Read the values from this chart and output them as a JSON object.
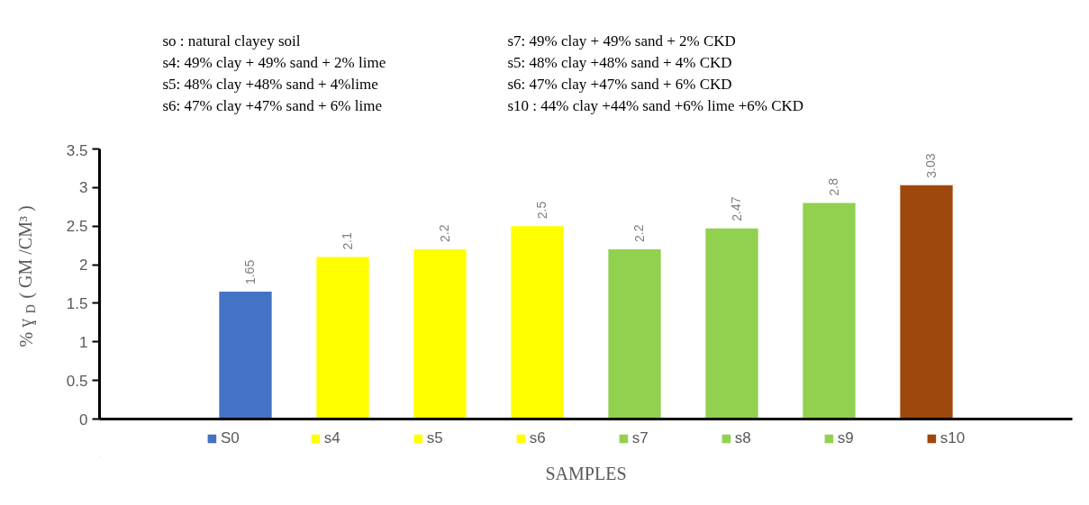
{
  "chart_data": {
    "type": "bar",
    "xlabel": "SAMPLES",
    "ylabel": "% ɣ$_{D}$ ( GM /CM³ )",
    "categories": [
      null,
      null,
      null,
      null,
      null,
      null,
      null,
      null,
      null,
      null
    ],
    "series": [
      {
        "name": "S0",
        "color": "#4472c4",
        "values": [
          null,
          1.65,
          null,
          null,
          null,
          null,
          null,
          null,
          null,
          null
        ]
      },
      {
        "name": "s4",
        "color": "#ffff00",
        "values": [
          null,
          null,
          2.1,
          null,
          null,
          null,
          null,
          null,
          null,
          null
        ]
      },
      {
        "name": "s5",
        "color": "#ffff00",
        "values": [
          null,
          null,
          null,
          2.2,
          null,
          null,
          null,
          null,
          null,
          null
        ]
      },
      {
        "name": "s6",
        "color": "#ffff00",
        "values": [
          null,
          null,
          null,
          null,
          2.5,
          null,
          null,
          null,
          null,
          null
        ]
      },
      {
        "name": "s7",
        "color": "#92d050",
        "values": [
          null,
          null,
          null,
          null,
          null,
          2.2,
          null,
          null,
          null,
          null
        ]
      },
      {
        "name": "s8",
        "color": "#92d050",
        "values": [
          null,
          null,
          null,
          null,
          null,
          null,
          2.47,
          null,
          null,
          null
        ]
      },
      {
        "name": "s9",
        "color": "#92d050",
        "values": [
          null,
          null,
          null,
          null,
          null,
          null,
          null,
          2.8,
          null,
          null
        ]
      },
      {
        "name": "s10",
        "color": "#9e480e",
        "values": [
          null,
          null,
          null,
          null,
          null,
          null,
          null,
          null,
          3.03,
          null
        ]
      }
    ],
    "ylim": [
      0,
      3.5
    ],
    "yticks": [
      0,
      0.5,
      1,
      1.5,
      2,
      2.5,
      3,
      3.5
    ],
    "data_labels": true,
    "legend": "bottom",
    "tick_labels": "y",
    "annotations": [
      "so : natural clayey soil",
      "s4: 49% clay + 49% sand + 2% lime",
      "s5: 48% clay +48% sand + 4%lime",
      "s6: 47% clay +47% sand + 6% lime",
      "s7: 49% clay + 49% sand + 2% CKD",
      "s5: 48% clay +48% sand + 4% CKD",
      "s6: 47% clay +47% sand + 6% CKD",
      "s10 : 44% clay +44% sand +6% lime +6% CKD"
    ]
  }
}
